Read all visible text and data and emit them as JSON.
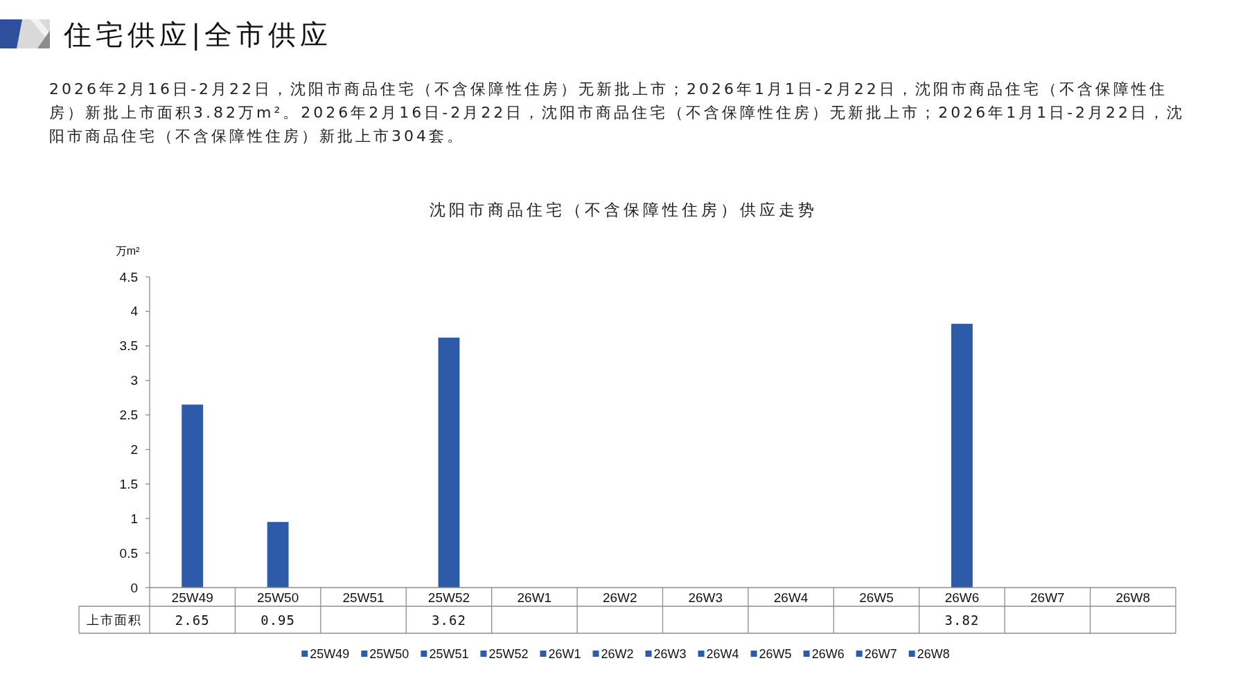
{
  "chart_data": {
    "type": "bar",
    "title": "沈阳市商品住宅（不含保障性住房）供应走势",
    "annotations": [
      "住宅供应|全市供应",
      "2026年2月16日-2月22日，沈阳市商品住宅（不含保障性住房）无新批上市；2026年1月1日-2月22日，沈阳市商品住宅（不含保障性住房）新批上市面积3.82万m²。2026年2月16日-2月22日，沈阳市商品住宅（不含保障性住房）无新批上市；2026年1月1日-2月22日，沈阳市商品住宅（不含保障性住房）新批上市304套。"
    ],
    "ylabel": "万m²",
    "categories": [
      "25W49",
      "25W50",
      "25W51",
      "25W52",
      "26W1",
      "26W2",
      "26W3",
      "26W4",
      "26W5",
      "26W6",
      "26W7",
      "26W8"
    ],
    "series": [
      {
        "name": "上市面积",
        "colors": [
          "#2e5ba7",
          "#2e5ba7",
          "#2e5ba7",
          "#2e5ba7",
          "#2e5ba7",
          "#2e5ba7",
          "#2e5ba7",
          "#2e5ba7",
          "#2e5ba7",
          "#2e5ba7",
          "#2e5ba7",
          "#2e5ba7"
        ],
        "values": [
          2.65,
          0.95,
          null,
          3.62,
          null,
          null,
          null,
          null,
          null,
          3.82,
          null,
          null
        ]
      }
    ],
    "ylim": [
      0,
      4.5
    ],
    "yticks": [
      0,
      0.5,
      1,
      1.5,
      2,
      2.5,
      3,
      3.5,
      4,
      4.5
    ],
    "data_labels": true,
    "legend": "bottom"
  }
}
